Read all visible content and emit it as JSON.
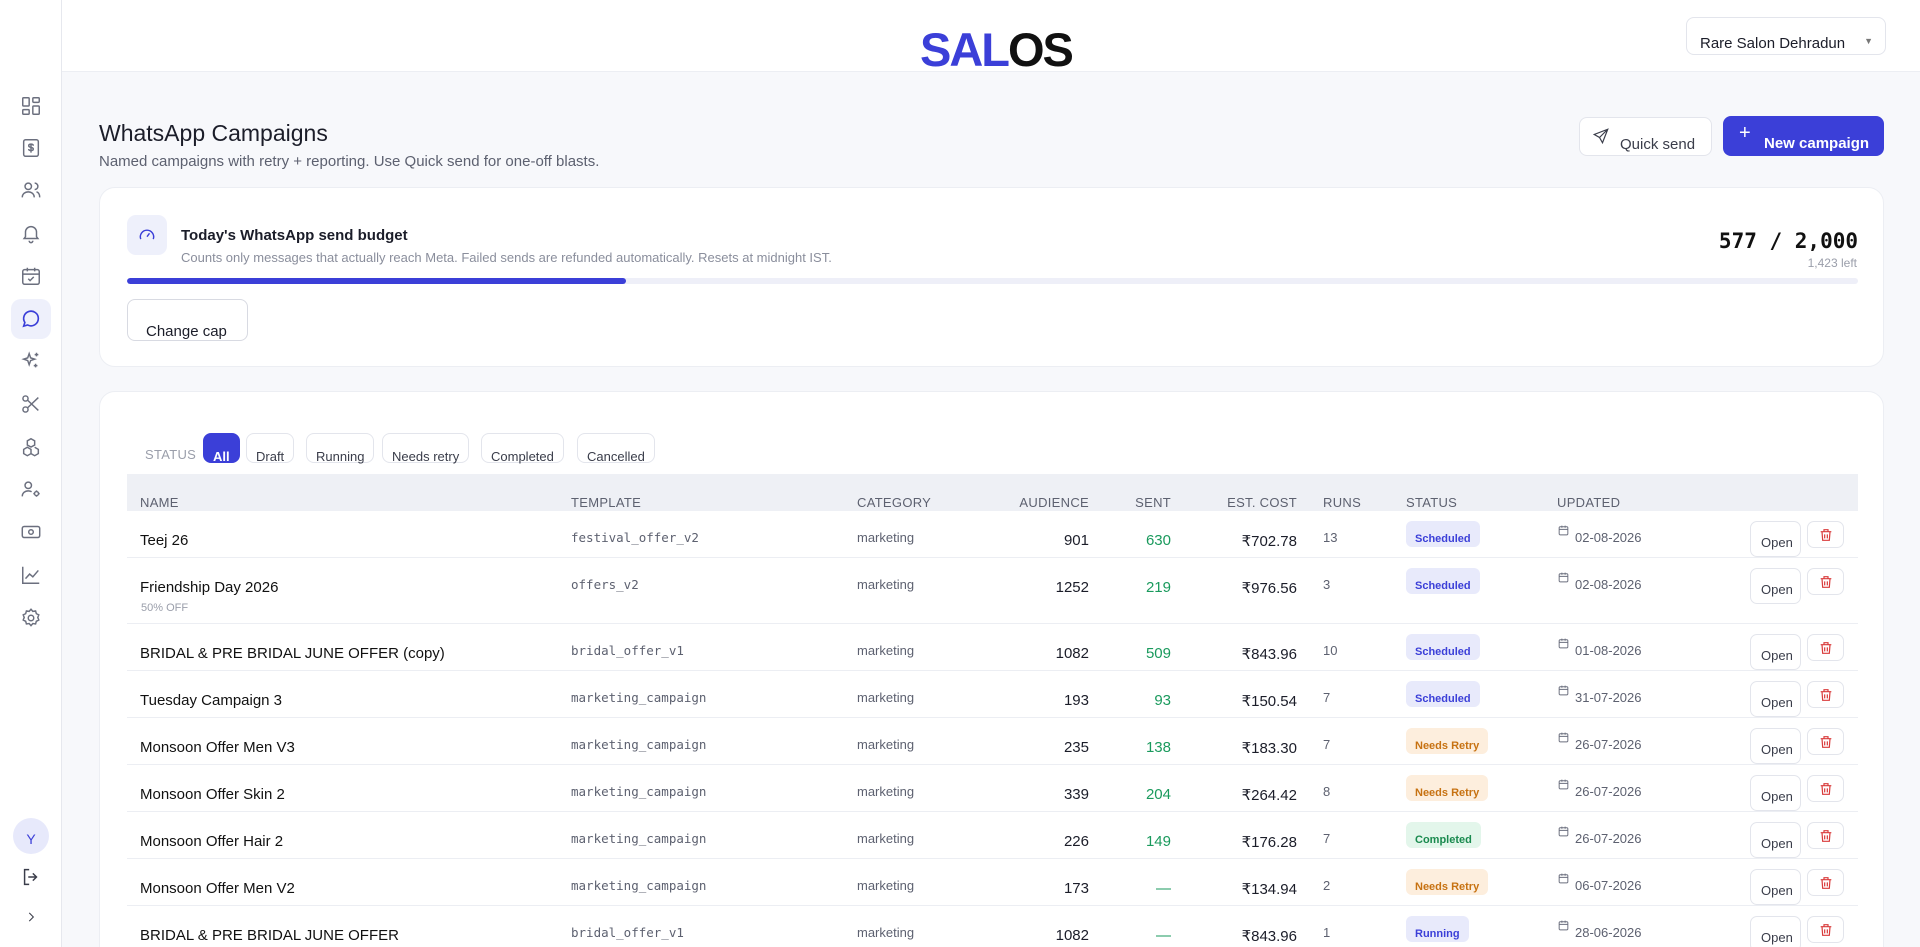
{
  "app": {
    "logo_part1": "SAL",
    "logo_part2": "OS",
    "salon": "Rare Salon Dehradun",
    "user_initial": "Y"
  },
  "sidebar": {
    "items": [
      {
        "icon": "dashboard-icon"
      },
      {
        "icon": "billing-icon"
      },
      {
        "icon": "customers-icon"
      },
      {
        "icon": "notifications-icon"
      },
      {
        "icon": "appointments-icon"
      },
      {
        "icon": "whatsapp-icon",
        "active": true
      },
      {
        "icon": "ai-sparkle-icon"
      },
      {
        "icon": "services-icon"
      },
      {
        "icon": "packages-icon"
      },
      {
        "icon": "staff-icon"
      },
      {
        "icon": "payments-icon"
      },
      {
        "icon": "reports-icon"
      },
      {
        "icon": "settings-icon"
      }
    ]
  },
  "header": {
    "title": "WhatsApp Campaigns",
    "subtitle": "Named campaigns with retry + reporting. Use Quick send for one-off blasts.",
    "quick_send": "Quick send",
    "new_campaign": "New campaign"
  },
  "budget": {
    "title": "Today's WhatsApp send budget",
    "description": "Counts only messages that actually reach Meta. Failed sends are refunded automatically. Resets at midnight IST.",
    "count": "577 / 2,000",
    "left": "1,423 left",
    "used_fraction": 0.2885,
    "change_cap": "Change cap"
  },
  "filters": {
    "label": "STATUS",
    "chips": [
      "All",
      "Draft",
      "Running",
      "Needs retry",
      "Completed",
      "Cancelled"
    ],
    "active": "All"
  },
  "table": {
    "columns": [
      "NAME",
      "TEMPLATE",
      "CATEGORY",
      "AUDIENCE",
      "SENT",
      "EST. COST",
      "RUNS",
      "STATUS",
      "UPDATED"
    ],
    "open_label": "Open",
    "rows": [
      {
        "name": "Teej 26",
        "note": "",
        "template": "festival_offer_v2",
        "category": "marketing",
        "audience": "901",
        "sent": "630",
        "cost": "₹702.78",
        "runs": "13",
        "status": "Scheduled",
        "tone": "blue",
        "updated": "02-08-2026"
      },
      {
        "name": "Friendship Day 2026",
        "note": "50% OFF",
        "template": "offers_v2",
        "category": "marketing",
        "audience": "1252",
        "sent": "219",
        "cost": "₹976.56",
        "runs": "3",
        "status": "Scheduled",
        "tone": "blue",
        "updated": "02-08-2026"
      },
      {
        "name": "BRIDAL & PRE BRIDAL JUNE OFFER (copy)",
        "note": "",
        "template": "bridal_offer_v1",
        "category": "marketing",
        "audience": "1082",
        "sent": "509",
        "cost": "₹843.96",
        "runs": "10",
        "status": "Scheduled",
        "tone": "blue",
        "updated": "01-08-2026"
      },
      {
        "name": "Tuesday Campaign 3",
        "note": "",
        "template": "marketing_campaign",
        "category": "marketing",
        "audience": "193",
        "sent": "93",
        "cost": "₹150.54",
        "runs": "7",
        "status": "Scheduled",
        "tone": "blue",
        "updated": "31-07-2026"
      },
      {
        "name": "Monsoon Offer Men V3",
        "note": "",
        "template": "marketing_campaign",
        "category": "marketing",
        "audience": "235",
        "sent": "138",
        "cost": "₹183.30",
        "runs": "7",
        "status": "Needs Retry",
        "tone": "orange",
        "updated": "26-07-2026"
      },
      {
        "name": "Monsoon Offer Skin 2",
        "note": "",
        "template": "marketing_campaign",
        "category": "marketing",
        "audience": "339",
        "sent": "204",
        "cost": "₹264.42",
        "runs": "8",
        "status": "Needs Retry",
        "tone": "orange",
        "updated": "26-07-2026"
      },
      {
        "name": "Monsoon Offer Hair 2",
        "note": "",
        "template": "marketing_campaign",
        "category": "marketing",
        "audience": "226",
        "sent": "149",
        "cost": "₹176.28",
        "runs": "7",
        "status": "Completed",
        "tone": "green",
        "updated": "26-07-2026"
      },
      {
        "name": "Monsoon Offer Men V2",
        "note": "",
        "template": "marketing_campaign",
        "category": "marketing",
        "audience": "173",
        "sent": "—",
        "cost": "₹134.94",
        "runs": "2",
        "status": "Needs Retry",
        "tone": "orange",
        "updated": "06-07-2026"
      },
      {
        "name": "BRIDAL & PRE BRIDAL JUNE OFFER",
        "note": "",
        "template": "bridal_offer_v1",
        "category": "marketing",
        "audience": "1082",
        "sent": "—",
        "cost": "₹843.96",
        "runs": "1",
        "status": "Running",
        "tone": "blue",
        "updated": "28-06-2026"
      }
    ]
  },
  "colors": {
    "accent": "#3b3fd8",
    "sent_green": "#1a9a5d",
    "delete_red": "#d93b3b"
  }
}
